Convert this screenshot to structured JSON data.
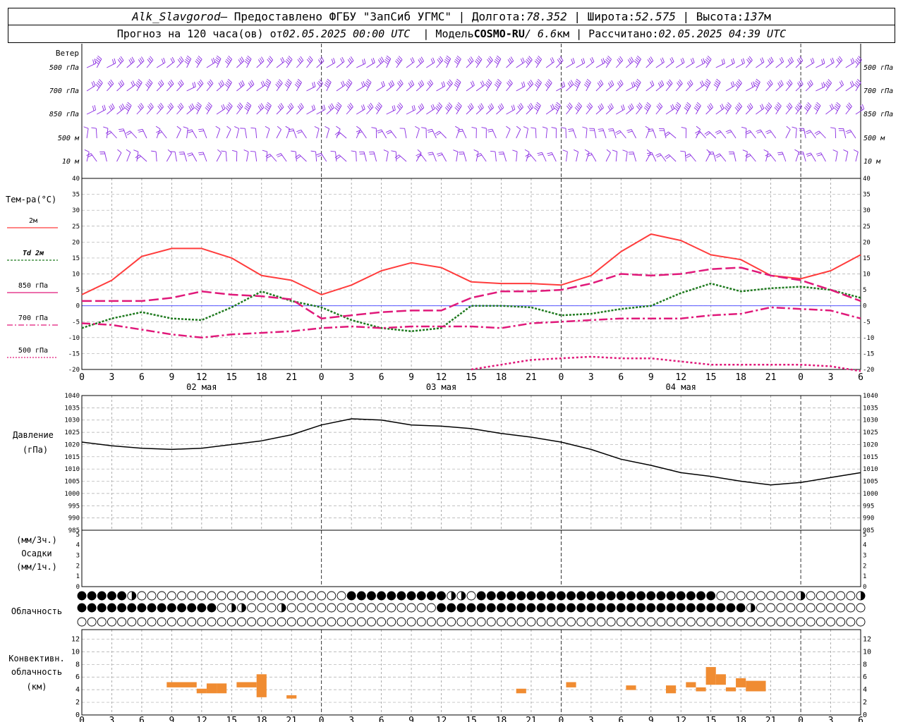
{
  "header": {
    "station": "Alk_Slavgorod",
    "provided_by": "— Предоставлено ФГБУ \"ЗапСиб УГМС\"",
    "lon_label": "Долгота:",
    "lon_value": "78.352",
    "lat_label": "Широта:",
    "lat_value": "52.575",
    "alt_label": "Высота:",
    "alt_value": "137",
    "alt_unit": "м",
    "forecast_label": "Прогноз на 120 часа(ов) от",
    "forecast_time": "02.05.2025 00:00 UTC",
    "model_label": "Модель",
    "model_name": "COSMO-RU",
    "model_res": "/ 6.6",
    "model_res_unit": "км",
    "calc_label": "Рассчитано:",
    "calc_time": "02.05.2025 04:39 UTC"
  },
  "panels": {
    "wind": {
      "title": "Ветер",
      "levels": [
        "500 гПа",
        "700 гПа",
        "850 гПа",
        "500 м",
        "10 м"
      ],
      "color": "#8a2be2"
    },
    "temperature": {
      "title": "Тем-ра(°C)",
      "legend": [
        {
          "label": "2м",
          "color": "#ff3c3c",
          "dash": "solid"
        },
        {
          "label": "Td  2м",
          "color": "#1f7a1f",
          "dash": "dotted"
        },
        {
          "label": "850 гПа",
          "color": "#e0197a",
          "dash": "dashed"
        },
        {
          "label": "700 гПа",
          "color": "#e0197a",
          "dash": "dashdot"
        },
        {
          "label": "500 гПа",
          "color": "#e0197a",
          "dash": "dotted"
        }
      ],
      "yticks": [
        "40",
        "35",
        "30",
        "25",
        "20",
        "15",
        "10",
        "5",
        "0",
        "-5",
        "-10",
        "-15",
        "-20"
      ]
    },
    "pressure": {
      "title": "Давление",
      "unit": "(гПа)",
      "yticks": [
        "1040",
        "1035",
        "1030",
        "1025",
        "1020",
        "1015",
        "1010",
        "1005",
        "1000",
        "995",
        "990",
        "985"
      ]
    },
    "precip": {
      "unit_top": "(мм/3ч.)",
      "title": "Осадки",
      "unit_bottom": "(мм/1ч.)",
      "yticks": [
        "5",
        "4",
        "3",
        "2",
        "1",
        "0"
      ]
    },
    "clouds": {
      "title": "Облачность"
    },
    "convective": {
      "title_line1": "Конвективн.",
      "title_line2": "облачность",
      "unit": "(км)",
      "yticks": [
        "12",
        "10",
        "8",
        "6",
        "4",
        "2",
        "0"
      ],
      "color": "#f08c32"
    }
  },
  "time_axis": {
    "hour_labels": [
      "0",
      "3",
      "6",
      "9",
      "12",
      "15",
      "18",
      "21",
      "0",
      "3",
      "6",
      "9",
      "12",
      "15",
      "18",
      "21",
      "0",
      "3",
      "6",
      "9",
      "12",
      "15",
      "18",
      "21",
      "0",
      "3",
      "6"
    ],
    "date_labels": [
      "02 мая",
      "03 мая",
      "04 мая"
    ]
  },
  "chart_data": [
    {
      "type": "line",
      "title": "Тем-ра(°C)",
      "ylim": [
        -20,
        40
      ],
      "x_hours": [
        0,
        3,
        6,
        9,
        12,
        15,
        18,
        21,
        24,
        27,
        30,
        33,
        36,
        39,
        42,
        45,
        48,
        51,
        54,
        57,
        60,
        63,
        66,
        69,
        72,
        75,
        78
      ],
      "series": [
        {
          "name": "2м",
          "values": [
            3.5,
            8,
            15.5,
            18,
            18,
            15,
            9.5,
            8,
            3.5,
            6.5,
            11,
            13.5,
            12,
            7.5,
            7,
            7,
            6.5,
            9.5,
            17,
            22.5,
            20.5,
            16,
            14.5,
            9.5,
            8.5,
            11,
            16
          ]
        },
        {
          "name": "Td  2м",
          "values": [
            -7,
            -4,
            -2,
            -4,
            -4.5,
            -0.5,
            4.5,
            1.5,
            -0.5,
            -4.5,
            -7,
            -8,
            -7,
            0,
            0,
            -0.5,
            -3,
            -2.5,
            -1,
            0,
            4,
            7,
            4.5,
            5.5,
            6,
            5,
            2.5
          ]
        },
        {
          "name": "850 гПа",
          "values": [
            1.5,
            1.5,
            1.5,
            2.5,
            4.5,
            3.5,
            3,
            2,
            -4,
            -3,
            -2,
            -1.5,
            -1.5,
            2.5,
            4.5,
            4.5,
            5,
            7,
            10,
            9.5,
            10,
            11.5,
            12,
            9.5,
            8,
            5,
            1.5
          ]
        },
        {
          "name": "700 гПа",
          "values": [
            -5.5,
            -6,
            -7.5,
            -9,
            -10,
            -9,
            -8.5,
            -8,
            -7,
            -6.5,
            -7,
            -6.5,
            -6.5,
            -6.5,
            -7,
            -5.5,
            -5,
            -4.5,
            -4,
            -4,
            -4,
            -3,
            -2.5,
            -0.5,
            -1,
            -1.5,
            -4
          ]
        },
        {
          "name": "500 гПа",
          "values": [
            null,
            null,
            null,
            null,
            null,
            null,
            null,
            null,
            null,
            null,
            null,
            null,
            null,
            -20,
            -18.5,
            -17,
            -16.5,
            -16,
            -16.5,
            -16.5,
            -17.5,
            -18.5,
            -18.5,
            -18.5,
            -18.5,
            -19,
            -20.5
          ]
        }
      ]
    },
    {
      "type": "line",
      "title": "Давление",
      "ylabel": "(гПа)",
      "ylim": [
        985,
        1040
      ],
      "x_hours": [
        0,
        3,
        6,
        9,
        12,
        15,
        18,
        21,
        24,
        27,
        30,
        33,
        36,
        39,
        42,
        45,
        48,
        51,
        54,
        57,
        60,
        63,
        66,
        69,
        72,
        75,
        78
      ],
      "series": [
        {
          "name": "Давление",
          "values": [
            1021,
            1019.5,
            1018.5,
            1018,
            1018.5,
            1020,
            1021.5,
            1024,
            1028,
            1030.5,
            1030,
            1028,
            1027.5,
            1026.5,
            1024.5,
            1023,
            1021,
            1018,
            1014,
            1011.5,
            1008.5,
            1007,
            1005,
            1003.5,
            1004.5,
            1006.5,
            1008.5
          ]
        }
      ]
    },
    {
      "type": "bar",
      "title": "Конвективн. облачность",
      "ylabel": "(км)",
      "ylim": [
        0,
        13
      ],
      "bars": [
        {
          "x0": 8.5,
          "x1": 11.5,
          "bottom": 4.2,
          "top": 5.0
        },
        {
          "x0": 11.5,
          "x1": 12.5,
          "bottom": 3.3,
          "top": 4.0
        },
        {
          "x0": 12.5,
          "x1": 13.5,
          "bottom": 3.3,
          "top": 4.8
        },
        {
          "x0": 13.5,
          "x1": 14.5,
          "bottom": 3.3,
          "top": 4.8
        },
        {
          "x0": 15.5,
          "x1": 17.5,
          "bottom": 4.2,
          "top": 5.0
        },
        {
          "x0": 17.5,
          "x1": 18.5,
          "bottom": 2.7,
          "top": 6.2
        },
        {
          "x0": 20.5,
          "x1": 21.5,
          "bottom": 2.5,
          "top": 3.0
        },
        {
          "x0": 43.5,
          "x1": 44.5,
          "bottom": 3.3,
          "top": 4.0
        },
        {
          "x0": 48.5,
          "x1": 49.5,
          "bottom": 4.2,
          "top": 5.0
        },
        {
          "x0": 54.5,
          "x1": 55.5,
          "bottom": 3.8,
          "top": 4.5
        },
        {
          "x0": 58.5,
          "x1": 59.5,
          "bottom": 3.3,
          "top": 4.5
        },
        {
          "x0": 60.5,
          "x1": 61.5,
          "bottom": 4.2,
          "top": 5.0
        },
        {
          "x0": 61.5,
          "x1": 62.5,
          "bottom": 3.6,
          "top": 4.2
        },
        {
          "x0": 62.5,
          "x1": 63.5,
          "bottom": 4.6,
          "top": 7.3
        },
        {
          "x0": 63.5,
          "x1": 64.5,
          "bottom": 4.6,
          "top": 6.2
        },
        {
          "x0": 64.5,
          "x1": 65.5,
          "bottom": 3.6,
          "top": 4.2
        },
        {
          "x0": 65.5,
          "x1": 66.5,
          "bottom": 4.2,
          "top": 5.6
        },
        {
          "x0": 66.5,
          "x1": 68.5,
          "bottom": 3.6,
          "top": 5.2
        }
      ]
    }
  ]
}
